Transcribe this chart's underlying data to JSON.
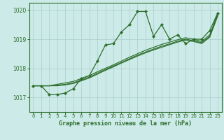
{
  "title": "Graphe pression niveau de la mer (hPa)",
  "bg_color": "#cceae7",
  "line_color": "#2d6e2d",
  "grid_color": "#aacccc",
  "xlim": [
    -0.5,
    23.5
  ],
  "ylim": [
    1016.5,
    1020.25
  ],
  "yticks": [
    1017,
    1018,
    1019,
    1020
  ],
  "xticks": [
    0,
    1,
    2,
    3,
    4,
    5,
    6,
    7,
    8,
    9,
    10,
    11,
    12,
    13,
    14,
    15,
    16,
    17,
    18,
    19,
    20,
    21,
    22,
    23
  ],
  "series0": [
    1017.4,
    1017.4,
    1017.1,
    1017.1,
    1017.15,
    1017.3,
    1017.65,
    1017.75,
    1018.25,
    1018.8,
    1018.85,
    1019.25,
    1019.5,
    1019.95,
    1019.95,
    1019.1,
    1019.5,
    1019.0,
    1019.15,
    1018.85,
    1019.0,
    1019.0,
    1019.3,
    1019.9
  ],
  "series1": [
    1017.4,
    1017.4,
    1017.4,
    1017.45,
    1017.5,
    1017.55,
    1017.65,
    1017.75,
    1017.88,
    1018.0,
    1018.12,
    1018.25,
    1018.38,
    1018.5,
    1018.62,
    1018.72,
    1018.82,
    1018.9,
    1018.98,
    1019.05,
    1019.0,
    1018.92,
    1019.15,
    1019.88
  ],
  "series2": [
    1017.4,
    1017.4,
    1017.4,
    1017.42,
    1017.45,
    1017.5,
    1017.6,
    1017.7,
    1017.83,
    1017.96,
    1018.08,
    1018.2,
    1018.33,
    1018.45,
    1018.56,
    1018.66,
    1018.76,
    1018.84,
    1018.93,
    1019.0,
    1018.95,
    1018.88,
    1019.1,
    1019.83
  ],
  "series3": [
    1017.4,
    1017.4,
    1017.4,
    1017.4,
    1017.43,
    1017.48,
    1017.57,
    1017.67,
    1017.8,
    1017.93,
    1018.05,
    1018.18,
    1018.3,
    1018.42,
    1018.53,
    1018.63,
    1018.72,
    1018.81,
    1018.9,
    1018.97,
    1018.92,
    1018.85,
    1019.07,
    1019.8
  ]
}
